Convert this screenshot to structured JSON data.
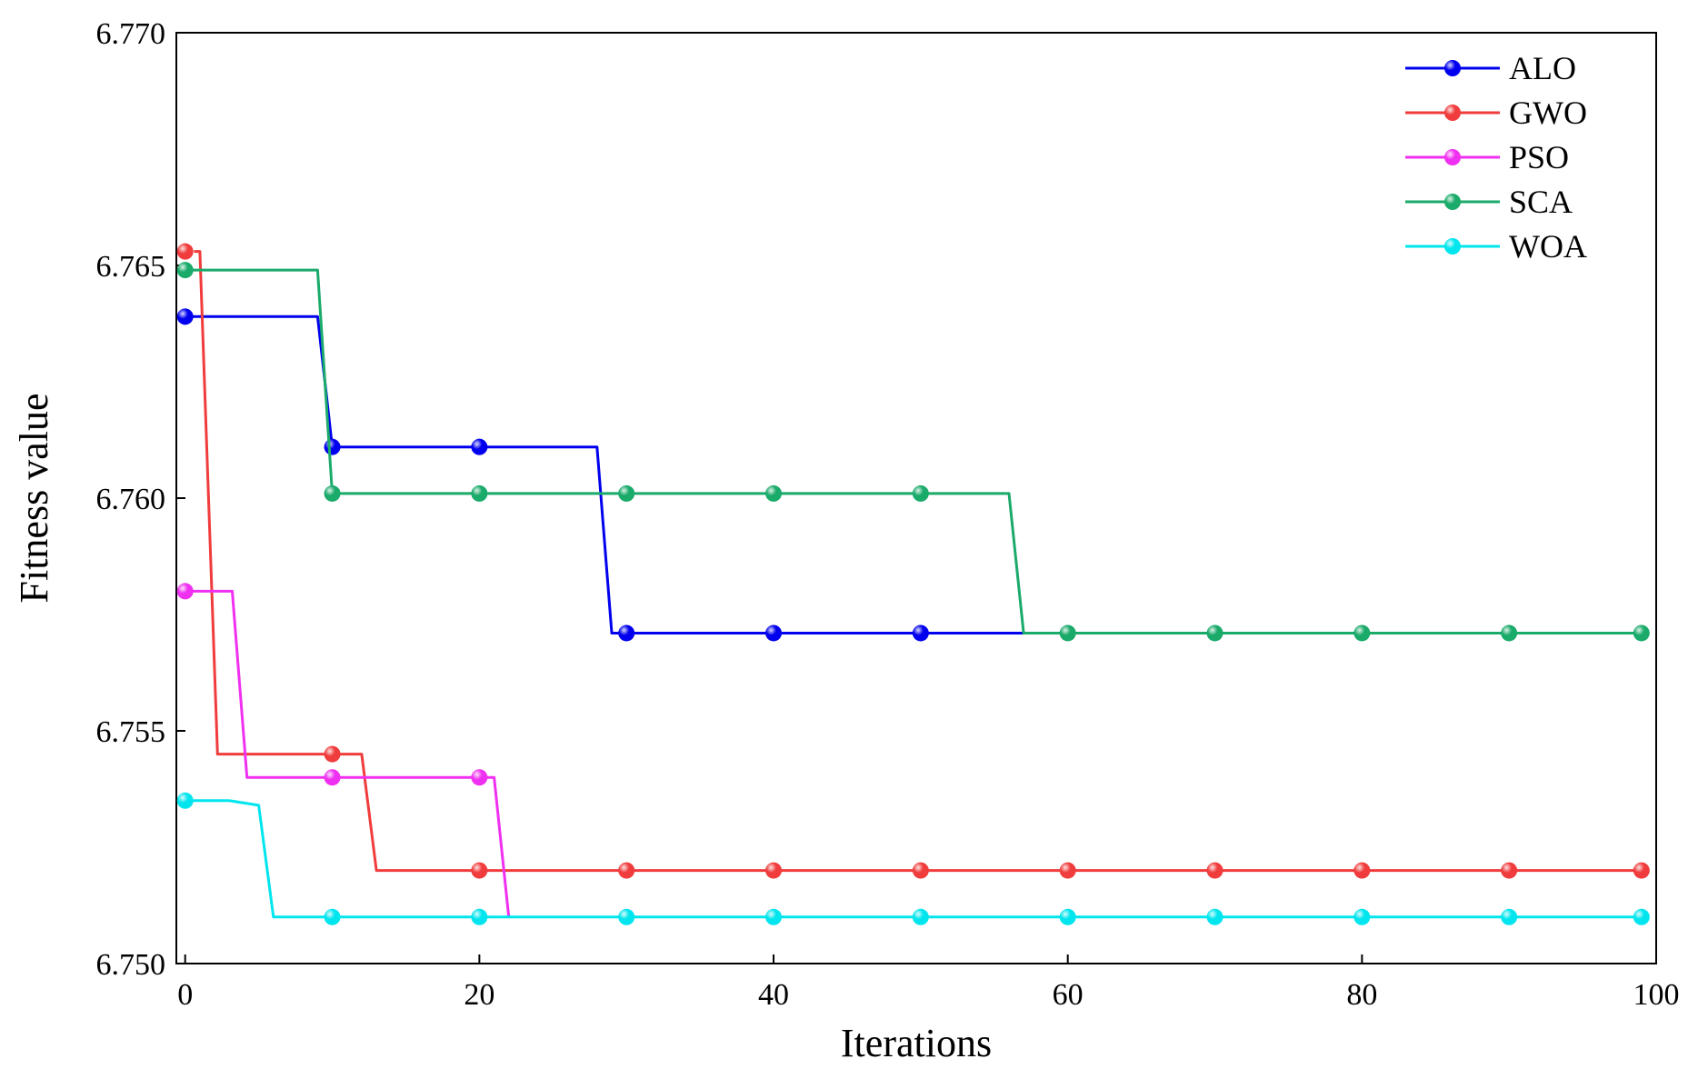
{
  "chart_data": {
    "type": "line",
    "title": "",
    "xlabel": "Iterations",
    "ylabel": "Fitness value",
    "xlim": [
      -0.6,
      100
    ],
    "ylim": [
      6.75,
      6.77
    ],
    "xticks": [
      0,
      20,
      40,
      60,
      80,
      100
    ],
    "xtick_labels": [
      "0",
      "20",
      "40",
      "60",
      "80",
      "100"
    ],
    "yticks": [
      6.75,
      6.755,
      6.76,
      6.765,
      6.77
    ],
    "ytick_labels": [
      "6.750",
      "6.755",
      "6.760",
      "6.765",
      "6.770"
    ],
    "grid": false,
    "legend_position": "top-right",
    "series": [
      {
        "name": "ALO",
        "color": "#0000ee",
        "line": [
          [
            0,
            6.7639
          ],
          [
            9,
            6.7639
          ],
          [
            10,
            6.7611
          ],
          [
            28,
            6.7611
          ],
          [
            29,
            6.7571
          ],
          [
            57,
            6.7571
          ]
        ],
        "markers": [
          [
            0,
            6.7639
          ],
          [
            10,
            6.7611
          ],
          [
            20,
            6.7611
          ],
          [
            30,
            6.7571
          ],
          [
            40,
            6.7571
          ],
          [
            50,
            6.7571
          ]
        ]
      },
      {
        "name": "GWO",
        "color": "#f03c3c",
        "line": [
          [
            0.6,
            6.7653
          ],
          [
            1,
            6.7653
          ],
          [
            2.2,
            6.7545
          ],
          [
            12,
            6.7545
          ],
          [
            13,
            6.752
          ],
          [
            99,
            6.752
          ]
        ],
        "markers": [
          [
            0,
            6.7653
          ],
          [
            10,
            6.7545
          ],
          [
            20,
            6.752
          ],
          [
            30,
            6.752
          ],
          [
            40,
            6.752
          ],
          [
            50,
            6.752
          ],
          [
            60,
            6.752
          ],
          [
            70,
            6.752
          ],
          [
            80,
            6.752
          ],
          [
            90,
            6.752
          ],
          [
            99,
            6.752
          ]
        ]
      },
      {
        "name": "PSO",
        "color": "#f030f0",
        "line": [
          [
            0,
            6.758
          ],
          [
            3.2,
            6.758
          ],
          [
            4.2,
            6.754
          ],
          [
            21,
            6.754
          ],
          [
            22,
            6.751
          ]
        ],
        "markers": [
          [
            0,
            6.758
          ],
          [
            10,
            6.754
          ],
          [
            20,
            6.754
          ]
        ]
      },
      {
        "name": "SCA",
        "color": "#1aaa6a",
        "line": [
          [
            0,
            6.7649
          ],
          [
            9,
            6.7649
          ],
          [
            10,
            6.7601
          ],
          [
            56,
            6.7601
          ],
          [
            57,
            6.7571
          ],
          [
            99,
            6.7571
          ]
        ],
        "markers": [
          [
            0,
            6.7649
          ],
          [
            10,
            6.7601
          ],
          [
            20,
            6.7601
          ],
          [
            30,
            6.7601
          ],
          [
            40,
            6.7601
          ],
          [
            50,
            6.7601
          ],
          [
            60,
            6.7571
          ],
          [
            70,
            6.7571
          ],
          [
            80,
            6.7571
          ],
          [
            90,
            6.7571
          ],
          [
            99,
            6.7571
          ]
        ]
      },
      {
        "name": "WOA",
        "color": "#00e5ee",
        "line": [
          [
            0,
            6.7535
          ],
          [
            3,
            6.7535
          ],
          [
            5,
            6.7534
          ],
          [
            6,
            6.751
          ],
          [
            99,
            6.751
          ]
        ],
        "markers": [
          [
            0,
            6.7535
          ],
          [
            10,
            6.751
          ],
          [
            20,
            6.751
          ],
          [
            30,
            6.751
          ],
          [
            40,
            6.751
          ],
          [
            50,
            6.751
          ],
          [
            60,
            6.751
          ],
          [
            70,
            6.751
          ],
          [
            80,
            6.751
          ],
          [
            90,
            6.751
          ],
          [
            99,
            6.751
          ]
        ]
      }
    ]
  }
}
